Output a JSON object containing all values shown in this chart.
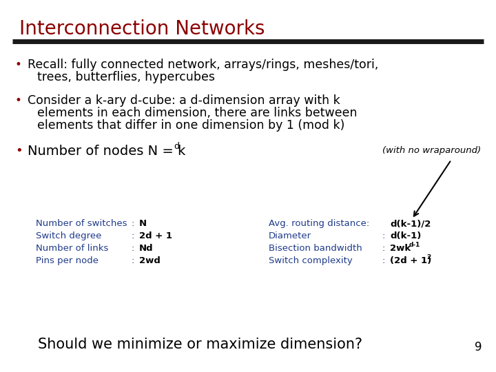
{
  "title": "Interconnection Networks",
  "title_color": "#8B0000",
  "slide_bg": "#FFFFFF",
  "bullet_color": "#000000",
  "blue_color": "#1E3A8A",
  "bullet1_line1": "Recall: fully connected network, arrays/rings, meshes/tori,",
  "bullet1_line2": "trees, butterflies, hypercubes",
  "bullet2_line1": "Consider a k-ary d-cube: a d-dimension array with k",
  "bullet2_line2": "elements in each dimension, there are links between",
  "bullet2_line3": "elements that differ in one dimension by 1 (mod k)",
  "bullet3_main": "Number of nodes N = k",
  "bullet3_super": "d",
  "wrap_note": "(with no wraparound)",
  "left_labels": [
    "Number of switches",
    "Switch degree",
    "Number of links",
    "Pins per node"
  ],
  "left_colons": [
    ":",
    ":",
    ":",
    ":"
  ],
  "left_values": [
    "N",
    "2d + 1",
    "Nd",
    "2wd"
  ],
  "right_labels": [
    "Avg. routing distance:",
    "Diameter",
    "Bisection bandwidth",
    "Switch complexity"
  ],
  "right_colons": [
    "",
    ":",
    ":",
    ":"
  ],
  "right_val1": "d(k-1)/2",
  "right_val2": "d(k-1)",
  "right_val3_base": "2wk",
  "right_val3_sup": "d-1",
  "right_val4_base": "(2d + 1)",
  "right_val4_sup": "2",
  "footer": "Should we minimize or maximize dimension?",
  "page_num": "9",
  "line_color": "#1a1a1a"
}
